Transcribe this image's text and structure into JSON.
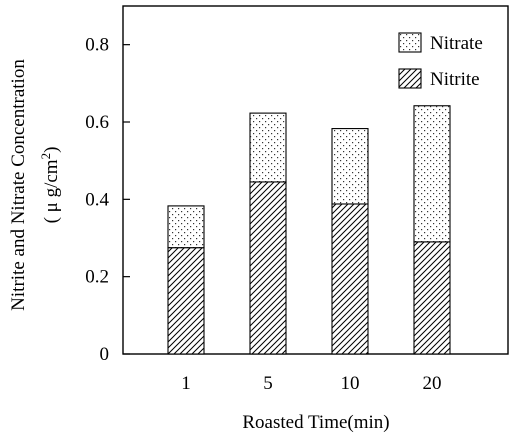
{
  "chart_data": {
    "type": "bar",
    "stacked": true,
    "categories": [
      "1",
      "5",
      "10",
      "20"
    ],
    "series": [
      {
        "name": "Nitrite",
        "values": [
          0.275,
          0.445,
          0.388,
          0.29
        ],
        "pattern": "hatched"
      },
      {
        "name": "Nitrate",
        "values": [
          0.108,
          0.178,
          0.195,
          0.352
        ],
        "pattern": "dotted"
      }
    ],
    "xlabel": "Roasted Time(min)",
    "ylabel_line1": "Nitrite and Nitrate Concentration",
    "ylabel_line2": "( μ g/cm",
    "ylabel_superscript": "2",
    "ylabel_close": ")",
    "ylim": [
      0,
      0.9
    ],
    "yticks": [
      "0",
      "0.2",
      "0.4",
      "0.6",
      "0.8"
    ],
    "legend_order": [
      "Nitrate",
      "Nitrite"
    ],
    "legend_position": "top-right",
    "grid": false
  }
}
